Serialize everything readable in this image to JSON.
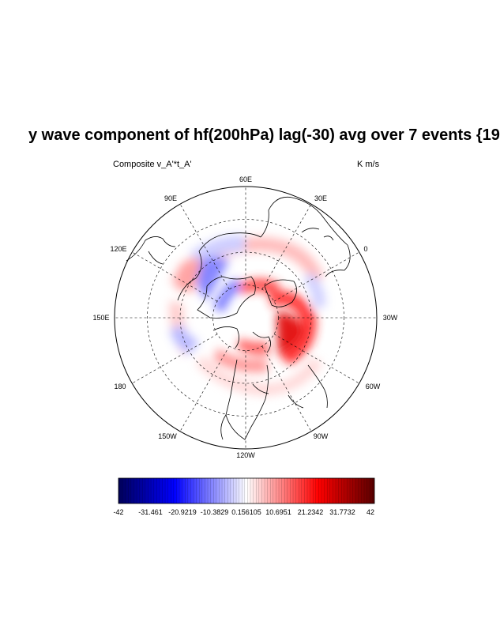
{
  "title": "y wave component of hf(200hPa) lag(-30) avg over 7 events {19",
  "left_subtitle": "Composite  v_A'*t_A'",
  "right_subtitle": "K m/s",
  "longitude_labels": [
    "60E",
    "30E",
    "0",
    "30W",
    "60W",
    "90W",
    "120W",
    "150W",
    "180",
    "150E",
    "120E",
    "90E"
  ],
  "colorbar": {
    "tick_labels": [
      "-42",
      "-31.461",
      "-20.9219",
      "-10.3829",
      "0.156105",
      "10.6951",
      "21.2342",
      "31.7732",
      "42"
    ],
    "min": -42,
    "max": 42,
    "colors": [
      "#00005a",
      "#0000ff",
      "#ffffff",
      "#ff0000",
      "#5a0000"
    ]
  }
}
